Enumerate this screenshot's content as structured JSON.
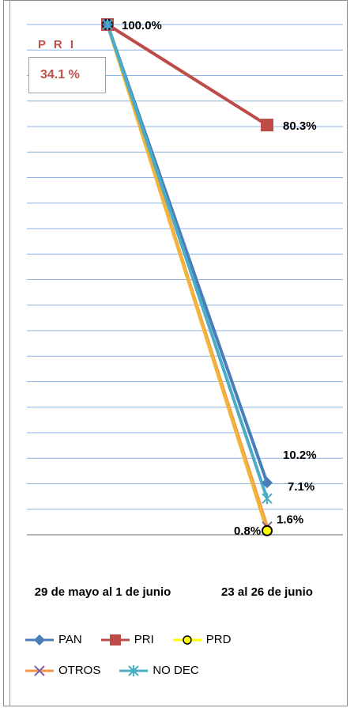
{
  "annotations": {
    "pri_title": "P R I",
    "pri_value": "34.1 %"
  },
  "chart_data": {
    "type": "line",
    "categories": [
      "29 de mayo al 1 de junio",
      "23 al 26 de junio"
    ],
    "ylim": [
      0,
      100
    ],
    "grid": true,
    "legend": "bottom",
    "series": [
      {
        "name": "PAN",
        "values": [
          100.0,
          10.2
        ],
        "color": "#4a7ebb",
        "marker": "diamond"
      },
      {
        "name": "PRI",
        "values": [
          100.0,
          80.3
        ],
        "color": "#be4b48",
        "marker": "square"
      },
      {
        "name": "PRD",
        "values": [
          100.0,
          0.8
        ],
        "color": "#ffff00",
        "marker": "circle"
      },
      {
        "name": "OTROS",
        "values": [
          100.0,
          1.6
        ],
        "color": "#f79646",
        "marker": "x"
      },
      {
        "name": "NO DEC",
        "values": [
          100.0,
          7.1
        ],
        "color": "#4bacc6",
        "marker": "star"
      }
    ],
    "data_labels": [
      {
        "text": "100.0%",
        "series": "PRI",
        "index": 0
      },
      {
        "text": "80.3%",
        "series": "PRI",
        "index": 1
      },
      {
        "text": "10.2%",
        "series": "PAN",
        "index": 1
      },
      {
        "text": "7.1%",
        "series": "NO DEC",
        "index": 1
      },
      {
        "text": "0.8%",
        "series": "PRD",
        "index": 1
      },
      {
        "text": "1.6%",
        "series": "OTROS",
        "index": 1
      }
    ]
  }
}
